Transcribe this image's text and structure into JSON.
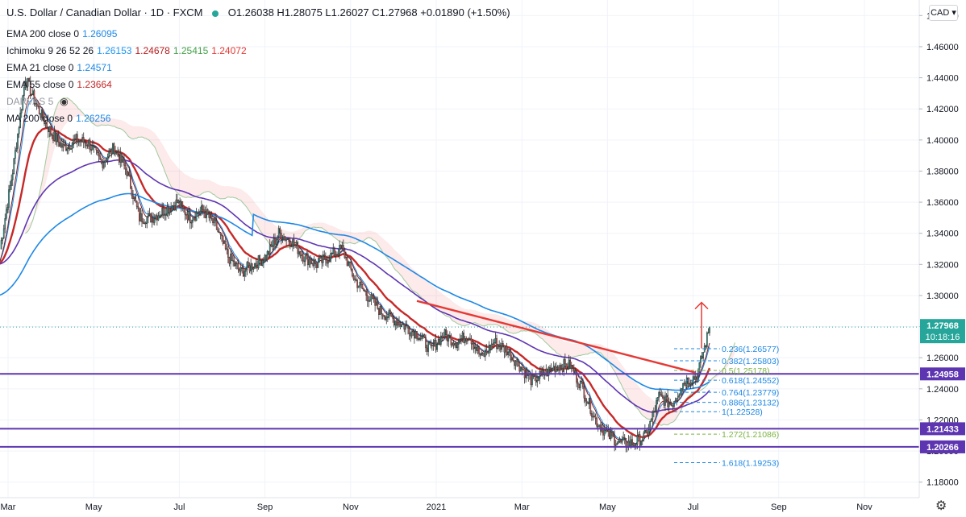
{
  "header": {
    "symbol": "U.S. Dollar / Canadian Dollar · 1D · FXCM",
    "ohlc": "O1.26038 H1.28075 L1.26027 C1.27968 +0.01890 (+1.50%)"
  },
  "indicators": [
    {
      "label": "EMA 200 close 0",
      "values": [
        {
          "v": "1.26095",
          "color": "#1e88e5"
        }
      ]
    },
    {
      "label": "Ichimoku 9 26 52 26",
      "values": [
        {
          "v": "1.26153",
          "color": "#2196f3"
        },
        {
          "v": "1.24678",
          "color": "#b71c1c"
        },
        {
          "v": "1.25415",
          "color": "#43a047"
        },
        {
          "v": "1.24072",
          "color": "#e53935"
        }
      ]
    },
    {
      "label": "EMA 21 close 0",
      "values": [
        {
          "v": "1.24571",
          "color": "#1e88e5"
        }
      ]
    },
    {
      "label": "EMA 55 close 0",
      "values": [
        {
          "v": "1.23664",
          "color": "#c62828"
        }
      ]
    },
    {
      "label": "DARVAS 5",
      "values": [],
      "faded": true
    },
    {
      "label": "MA 200 close 0",
      "values": [
        {
          "v": "1.26256",
          "color": "#1e88e5"
        }
      ]
    }
  ],
  "currency_button": "CAD",
  "chart_data": {
    "type": "candlestick",
    "symbol": "USDCAD",
    "timeframe": "1D",
    "x_ticks": [
      "Mar",
      "May",
      "Jul",
      "Sep",
      "Nov",
      "2021",
      "Mar",
      "May",
      "Jul",
      "Sep",
      "Nov"
    ],
    "y_ticks": [
      "1.18000",
      "1.20000",
      "1.22000",
      "1.24000",
      "1.26000",
      "1.28000",
      "1.30000",
      "1.32000",
      "1.34000",
      "1.36000",
      "1.38000",
      "1.40000",
      "1.42000",
      "1.44000",
      "1.46000",
      "1.48000"
    ],
    "ylim": [
      1.17,
      1.49
    ],
    "price_path": [
      [
        0,
        1.33
      ],
      [
        10,
        1.38
      ],
      [
        20,
        1.44
      ],
      [
        30,
        1.42
      ],
      [
        40,
        1.405
      ],
      [
        50,
        1.395
      ],
      [
        60,
        1.4
      ],
      [
        70,
        1.398
      ],
      [
        80,
        1.385
      ],
      [
        90,
        1.395
      ],
      [
        100,
        1.38
      ],
      [
        110,
        1.35
      ],
      [
        120,
        1.35
      ],
      [
        130,
        1.355
      ],
      [
        140,
        1.36
      ],
      [
        150,
        1.35
      ],
      [
        160,
        1.355
      ],
      [
        170,
        1.345
      ],
      [
        180,
        1.325
      ],
      [
        190,
        1.315
      ],
      [
        200,
        1.32
      ],
      [
        210,
        1.325
      ],
      [
        220,
        1.34
      ],
      [
        230,
        1.335
      ],
      [
        240,
        1.325
      ],
      [
        250,
        1.32
      ],
      [
        260,
        1.325
      ],
      [
        270,
        1.33
      ],
      [
        280,
        1.31
      ],
      [
        290,
        1.3
      ],
      [
        300,
        1.29
      ],
      [
        310,
        1.285
      ],
      [
        320,
        1.28
      ],
      [
        330,
        1.275
      ],
      [
        340,
        1.265
      ],
      [
        350,
        1.275
      ],
      [
        360,
        1.27
      ],
      [
        370,
        1.275
      ],
      [
        380,
        1.26
      ],
      [
        390,
        1.27
      ],
      [
        400,
        1.265
      ],
      [
        410,
        1.255
      ],
      [
        420,
        1.245
      ],
      [
        430,
        1.25
      ],
      [
        440,
        1.255
      ],
      [
        450,
        1.255
      ],
      [
        460,
        1.24
      ],
      [
        470,
        1.22
      ],
      [
        480,
        1.21
      ],
      [
        490,
        1.205
      ],
      [
        500,
        1.205
      ],
      [
        510,
        1.21
      ],
      [
        520,
        1.235
      ],
      [
        530,
        1.23
      ],
      [
        540,
        1.245
      ],
      [
        550,
        1.248
      ],
      [
        560,
        1.279
      ]
    ],
    "current_price": {
      "label": "1.27968",
      "countdown": "10:18:16",
      "value": 1.27968
    },
    "support_lines": [
      {
        "value": 1.24958,
        "label": "1.24958"
      },
      {
        "value": 1.21433,
        "label": "1.21433"
      },
      {
        "value": 1.20266,
        "label": "1.20266"
      }
    ],
    "fibonacci": [
      {
        "ratio": "0.236",
        "value": 1.26577,
        "label": "0.236(1.26577)",
        "color": "#1e88e5"
      },
      {
        "ratio": "0.382",
        "value": 1.25803,
        "label": "0.382(1.25803)",
        "color": "#1e88e5"
      },
      {
        "ratio": "0.5",
        "value": 1.25178,
        "label": "0.5(1.25178)",
        "color": "#7cb342"
      },
      {
        "ratio": "0.618",
        "value": 1.24552,
        "label": "0.618(1.24552)",
        "color": "#1e88e5"
      },
      {
        "ratio": "0.764",
        "value": 1.23779,
        "label": "0.764(1.23779)",
        "color": "#1e88e5"
      },
      {
        "ratio": "0.886",
        "value": 1.23132,
        "label": "0.886(1.23132)",
        "color": "#1e88e5"
      },
      {
        "ratio": "1",
        "value": 1.22528,
        "label": "1(1.22528)",
        "color": "#1e88e5"
      },
      {
        "ratio": "1.272",
        "value": 1.21086,
        "label": "1.272(1.21086)",
        "color": "#7cb342"
      },
      {
        "ratio": "1.618",
        "value": 1.19253,
        "label": "1.618(1.19253)",
        "color": "#1e88e5"
      }
    ],
    "colors": {
      "up": "#26a69a",
      "down": "#ef5350",
      "ema200": "#1e88e5",
      "ma200": "#5e35b1",
      "ema55": "#c62828",
      "support": "#5e35b1",
      "trendline": "#e53935",
      "fib": "#1e88e5"
    }
  }
}
